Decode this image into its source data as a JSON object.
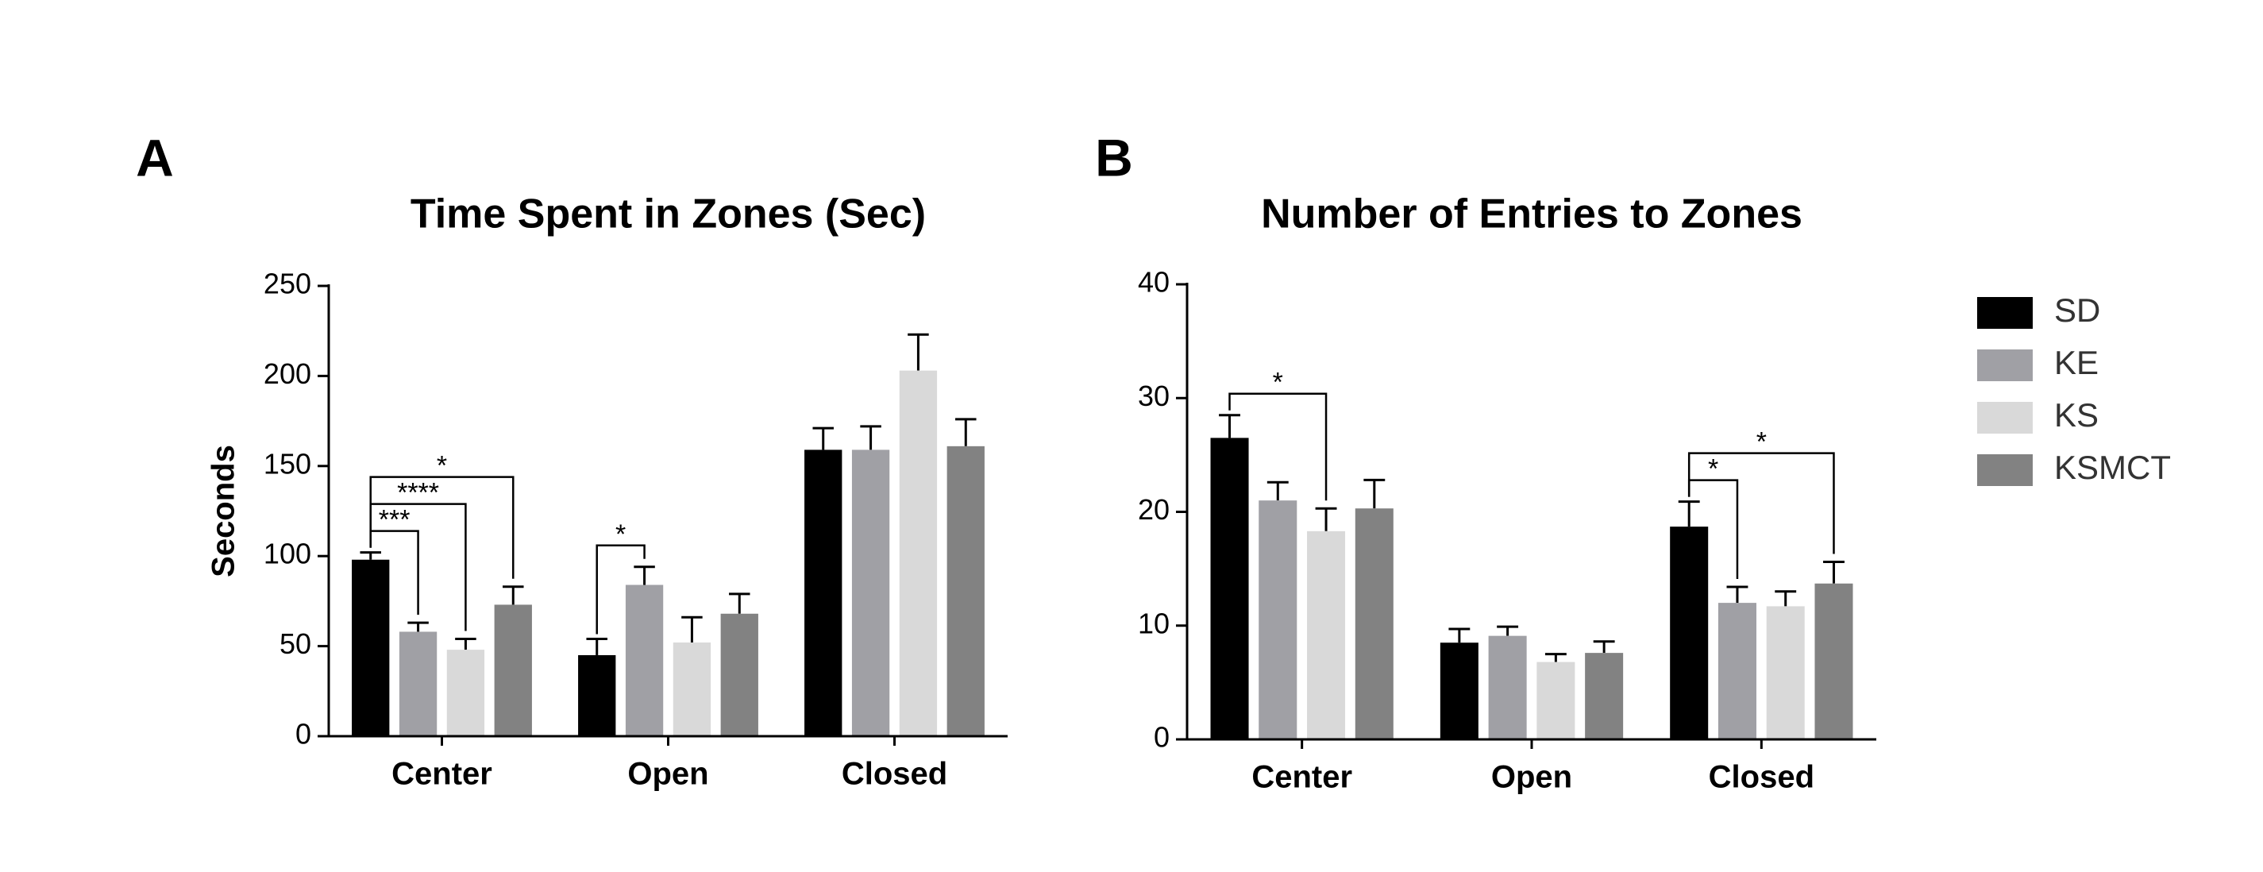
{
  "chart_data": [
    {
      "type": "bar",
      "panel_label": "A",
      "title": "Time Spent in Zones (Sec)",
      "y_label": "Seconds",
      "categories": [
        "Center",
        "Open",
        "Closed"
      ],
      "series": [
        {
          "name": "SD",
          "color": "#000000",
          "values": [
            98,
            45,
            159
          ],
          "errors": [
            4,
            9,
            12
          ]
        },
        {
          "name": "KE",
          "color": "#a0a0a5",
          "values": [
            58,
            84,
            159
          ],
          "errors": [
            5,
            10,
            13
          ]
        },
        {
          "name": "KS",
          "color": "#d9d9d9",
          "values": [
            48,
            52,
            203
          ],
          "errors": [
            6,
            14,
            20
          ]
        },
        {
          "name": "KSMCT",
          "color": "#828282",
          "values": [
            73,
            68,
            161
          ],
          "errors": [
            10,
            11,
            15
          ]
        }
      ],
      "ylim": [
        0,
        250
      ],
      "yticks": [
        0,
        50,
        100,
        150,
        200,
        250
      ],
      "annotations": [
        {
          "label": "***",
          "category": 0,
          "series": [
            0,
            1
          ]
        },
        {
          "label": "****",
          "category": 0,
          "series": [
            0,
            2
          ]
        },
        {
          "label": "*",
          "category": 0,
          "series": [
            0,
            3
          ]
        },
        {
          "label": "*",
          "category": 1,
          "series": [
            0,
            1
          ]
        }
      ]
    },
    {
      "type": "bar",
      "panel_label": "B",
      "title": "Number of Entries to Zones",
      "categories": [
        "Center",
        "Open",
        "Closed"
      ],
      "series": [
        {
          "name": "SD",
          "color": "#000000",
          "values": [
            26.5,
            8.5,
            18.7
          ],
          "errors": [
            2,
            1.2,
            2.2
          ]
        },
        {
          "name": "KE",
          "color": "#a0a0a5",
          "values": [
            21,
            9.1,
            12
          ],
          "errors": [
            1.6,
            0.8,
            1.4
          ]
        },
        {
          "name": "KS",
          "color": "#d9d9d9",
          "values": [
            18.3,
            6.8,
            11.7
          ],
          "errors": [
            2,
            0.7,
            1.3
          ]
        },
        {
          "name": "KSMCT",
          "color": "#828282",
          "values": [
            20.3,
            7.6,
            13.7
          ],
          "errors": [
            2.5,
            1,
            1.9
          ]
        }
      ],
      "ylim": [
        0,
        40
      ],
      "yticks": [
        0,
        10,
        20,
        30,
        40
      ],
      "legend": "right",
      "annotations": [
        {
          "label": "*",
          "category": 0,
          "series": [
            0,
            2
          ]
        },
        {
          "label": "*",
          "category": 2,
          "series": [
            0,
            1
          ]
        },
        {
          "label": "*",
          "category": 2,
          "series": [
            0,
            3
          ]
        }
      ]
    }
  ]
}
